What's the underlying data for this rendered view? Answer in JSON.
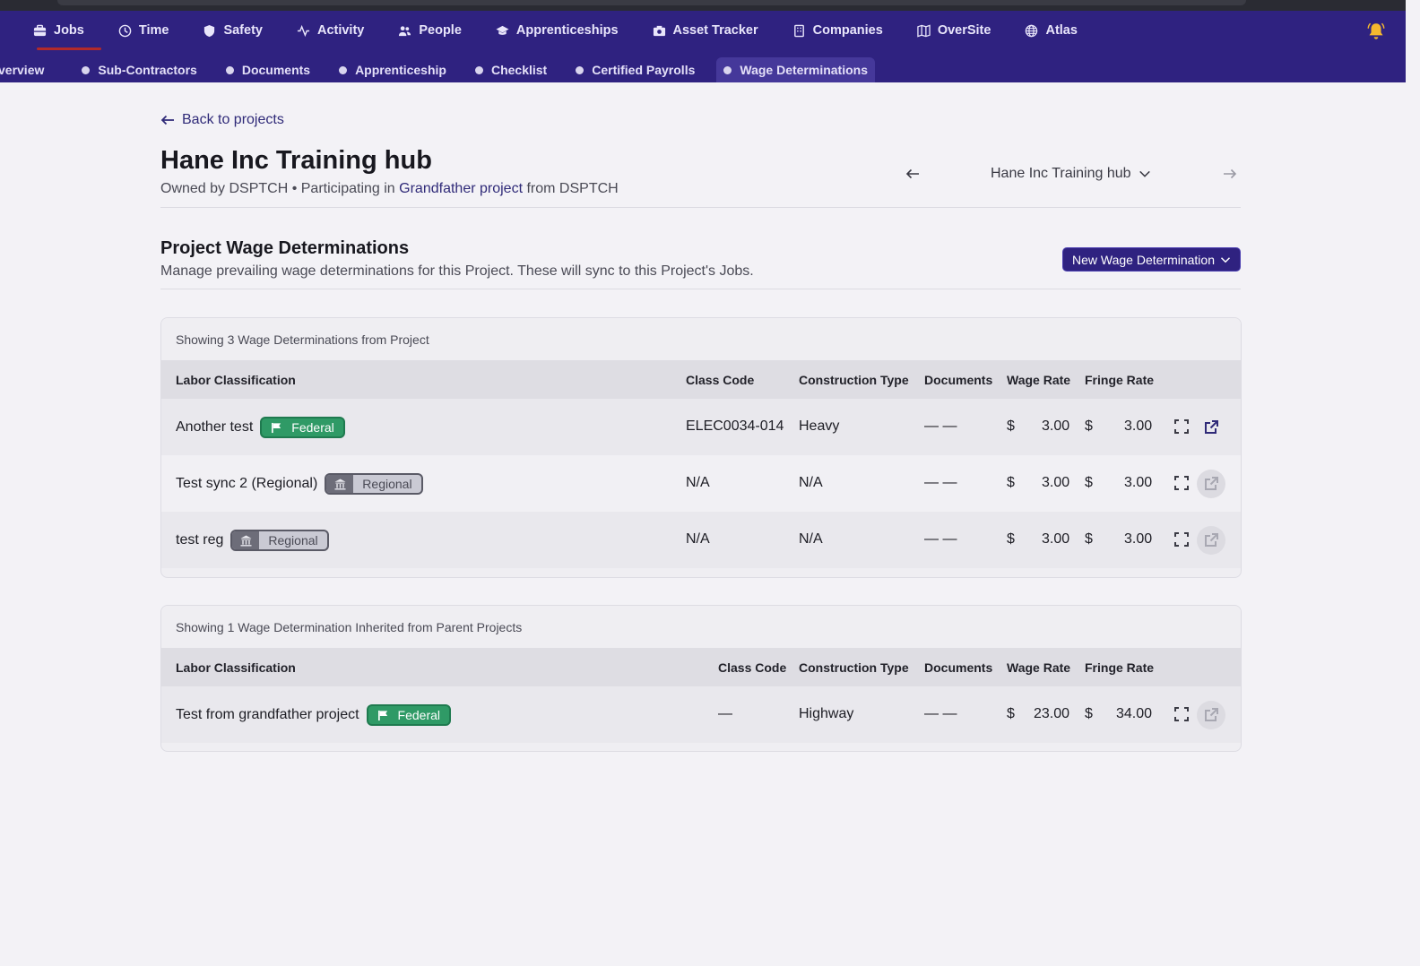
{
  "primary_nav": [
    {
      "label": "Jobs",
      "icon": "briefcase-icon",
      "active": true
    },
    {
      "label": "Time",
      "icon": "clock-icon"
    },
    {
      "label": "Safety",
      "icon": "shield-icon"
    },
    {
      "label": "Activity",
      "icon": "pulse-icon"
    },
    {
      "label": "People",
      "icon": "users-icon"
    },
    {
      "label": "Apprenticeships",
      "icon": "graduation-cap-icon"
    },
    {
      "label": "Asset Tracker",
      "icon": "camera-icon"
    },
    {
      "label": "Companies",
      "icon": "building-icon"
    },
    {
      "label": "OverSite",
      "icon": "map-icon"
    },
    {
      "label": "Atlas",
      "icon": "globe-icon"
    }
  ],
  "secondary_nav": [
    {
      "label": "verview"
    },
    {
      "label": "Sub-Contractors"
    },
    {
      "label": "Documents"
    },
    {
      "label": "Apprenticeship"
    },
    {
      "label": "Checklist"
    },
    {
      "label": "Certified Payrolls"
    },
    {
      "label": "Wage Determinations",
      "active": true
    }
  ],
  "header": {
    "back_label": "Back to projects",
    "title": "Hane Inc Training hub",
    "owner_prefix": "Owned by DSPTCH • Participating in",
    "parent_link": "Grandfather project",
    "owner_suffix": "from DSPTCH",
    "project_selector": "Hane Inc Training hub"
  },
  "section": {
    "title": "Project Wage Determinations",
    "description": "Manage prevailing wage determinations for this Project. These will sync to this Project's Jobs.",
    "new_button": "New Wage Determination"
  },
  "columns": {
    "labor": "Labor Classification",
    "class_code": "Class Code",
    "construction_type": "Construction Type",
    "documents": "Documents",
    "wage_rate": "Wage Rate",
    "fringe_rate": "Fringe Rate"
  },
  "project_table": {
    "caption": "Showing 3 Wage Determinations from Project",
    "rows": [
      {
        "name": "Another test",
        "badge": "Federal",
        "class_code": "ELEC0034-014",
        "construction_type": "Heavy",
        "documents": "— —",
        "currency": "$",
        "wage": "3.00",
        "fringe": "3.00",
        "link_enabled": true
      },
      {
        "name": "Test sync 2 (Regional)",
        "badge": "Regional",
        "class_code": "N/A",
        "construction_type": "N/A",
        "documents": "— —",
        "currency": "$",
        "wage": "3.00",
        "fringe": "3.00",
        "link_enabled": false
      },
      {
        "name": "test reg",
        "badge": "Regional",
        "class_code": "N/A",
        "construction_type": "N/A",
        "documents": "— —",
        "currency": "$",
        "wage": "3.00",
        "fringe": "3.00",
        "link_enabled": false
      }
    ]
  },
  "inherited_table": {
    "caption": "Showing 1 Wage Determination Inherited from Parent Projects",
    "rows": [
      {
        "name": "Test from grandfather project",
        "badge": "Federal",
        "class_code": "—",
        "construction_type": "Highway",
        "documents": "— —",
        "currency": "$",
        "wage": "23.00",
        "fringe": "34.00",
        "link_enabled": false
      }
    ]
  },
  "colors": {
    "nav_bg": "#2f2280",
    "federal_badge": "#2f9a66",
    "regional_badge": "#cacad4",
    "link": "#2f2a78",
    "bell": "#f5b82e"
  }
}
